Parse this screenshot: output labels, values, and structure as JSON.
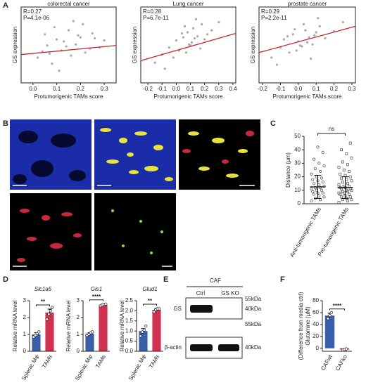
{
  "panel_labels": [
    "A",
    "B",
    "C",
    "D",
    "E",
    "F"
  ],
  "chart_data": [
    {
      "type": "scatter",
      "title": "colorectal cancer",
      "annotations": [
        "R=0.27",
        "P=4.1e-06"
      ],
      "xlabel": "Protumorigenic TAMs score",
      "ylabel": "GS expression",
      "color": "#a9a9a9",
      "fit_color": "#c0282d",
      "xlim": [
        -0.05,
        0.35
      ],
      "ylim": [
        -4,
        3.5
      ],
      "xticks": [
        {
          "value": 0,
          "label": "0.0"
        },
        0.1,
        0.2,
        0.3
      ],
      "x": [
        0.02,
        0.05,
        0.08,
        0.1,
        0.12,
        0.15,
        0.18,
        0.2,
        0.22,
        0.25,
        0.28,
        0.3,
        0.06,
        0.09,
        0.11,
        0.13,
        0.16,
        0.19,
        0.21,
        0.24,
        0.07,
        0.14,
        0.17,
        0.04,
        0.26
      ],
      "y": [
        -1.5,
        0.8,
        -2.1,
        0.3,
        -0.8,
        1.2,
        -0.2,
        0.5,
        -1.0,
        0.9,
        -0.5,
        0.2,
        -0.3,
        1.5,
        -2.8,
        0.1,
        -1.3,
        0.7,
        1.8,
        -0.6,
        -1.1,
        -0.4,
        2.1,
        -0.9,
        0.4
      ],
      "fit": {
        "x": [
          -0.05,
          0.35
        ],
        "y": [
          -1.2,
          -0.3
        ]
      }
    },
    {
      "type": "scatter",
      "title": "Lung cancer",
      "annotations": [
        "R=0.28",
        "P=6.7e-11"
      ],
      "xlabel": "Protumorigenic TAMs score",
      "ylabel": "GS expression",
      "color": "#a9a9a9",
      "fit_color": "#c0282d",
      "xlim": [
        -0.25,
        0.42
      ],
      "ylim": [
        -4,
        3.5
      ],
      "xticks": [
        -0.2,
        -0.1,
        {
          "value": 0,
          "label": "0.0"
        },
        0.1,
        0.2,
        0.3,
        0.4
      ],
      "x": [
        -0.15,
        -0.1,
        -0.05,
        0,
        0.02,
        0.05,
        0.08,
        0.1,
        0.12,
        0.15,
        0.18,
        0.2,
        0.25,
        0.3,
        -0.08,
        -0.02,
        0.04,
        0.07,
        0.11,
        0.14,
        0.17,
        0.22,
        0.06,
        0.09,
        0.13
      ],
      "y": [
        -2.0,
        -1.2,
        -0.5,
        0.2,
        -0.8,
        0.5,
        1.0,
        -0.3,
        1.4,
        0.6,
        1.8,
        0.3,
        1.2,
        2.0,
        -2.6,
        -1.5,
        0.9,
        -1.0,
        0.0,
        2.3,
        -0.6,
        0.8,
        1.6,
        -0.2,
        0.4
      ],
      "fit": {
        "x": [
          -0.25,
          0.42
        ],
        "y": [
          -1.8,
          0.9
        ]
      }
    },
    {
      "type": "scatter",
      "title": "prostate cancer",
      "annotations": [
        "R=0.29",
        "P=2.2e-11"
      ],
      "xlabel": "Protumorigenic TAMs score",
      "ylabel": "GS expression",
      "color": "#a9a9a9",
      "fit_color": "#c0282d",
      "xlim": [
        -0.22,
        0.32
      ],
      "ylim": [
        -4,
        3.5
      ],
      "xticks": [
        -0.2,
        -0.1,
        {
          "value": 0,
          "label": "0.0"
        },
        0.1,
        0.2,
        0.3
      ],
      "x": [
        -0.15,
        -0.1,
        -0.08,
        -0.05,
        -0.03,
        0,
        0.02,
        0.04,
        0.06,
        0.08,
        0.1,
        0.12,
        0.15,
        0.2,
        0.25,
        -0.12,
        -0.06,
        -0.01,
        0.03,
        0.05,
        0.07,
        0.09,
        0.11,
        0.01,
        -0.02
      ],
      "y": [
        -1.5,
        -0.5,
        0.3,
        -1.0,
        0.8,
        0.1,
        -0.4,
        1.2,
        0.5,
        -0.2,
        1.0,
        1.6,
        0.4,
        1.1,
        2.0,
        -2.2,
        0.6,
        -0.8,
        1.8,
        0.0,
        -1.6,
        0.7,
        2.4,
        -0.3,
        1.3
      ],
      "fit": {
        "x": [
          -0.22,
          0.32
        ],
        "y": [
          -1.0,
          1.6
        ]
      }
    },
    {
      "type": "strip",
      "ylabel": "Distance (μm)",
      "categories": [
        "Anti-tumorigenic TAMs",
        "Pro-tumorigenic TAMs"
      ],
      "annotation": "ns",
      "ylim": [
        0,
        50
      ],
      "yticks": [
        0,
        10,
        20,
        30,
        40,
        50
      ],
      "markers": [
        "circle",
        "square"
      ],
      "color": "#333333",
      "means": [
        12.5,
        12
      ],
      "errors": [
        8.5,
        8
      ],
      "points": [
        [
          2,
          3,
          4,
          5,
          6,
          7,
          8,
          8,
          9,
          10,
          10,
          11,
          12,
          12,
          13,
          14,
          15,
          16,
          17,
          18,
          19,
          20,
          22,
          24,
          26,
          28,
          30,
          33,
          38,
          42
        ],
        [
          1,
          2,
          3,
          3,
          4,
          5,
          5,
          6,
          7,
          7,
          8,
          8,
          9,
          9,
          10,
          10,
          11,
          11,
          12,
          12,
          13,
          13,
          14,
          15,
          16,
          17,
          18,
          19,
          20,
          21,
          22,
          24,
          25,
          27,
          29,
          31,
          34,
          37,
          40,
          45
        ]
      ]
    },
    {
      "type": "bar",
      "title": "Slc1a5",
      "ylabel": "Relative mRNA level",
      "categories": [
        "Splenic Mφ",
        "TAMs"
      ],
      "colors": [
        "#3a5ea8",
        "#d0314f"
      ],
      "values": [
        1.0,
        2.3
      ],
      "errors": [
        0.1,
        0.2
      ],
      "annotation": "**",
      "points": [
        [
          0.85,
          0.95,
          1.05,
          1.15
        ],
        [
          1.9,
          2.2,
          2.4,
          2.6
        ]
      ],
      "ylim": [
        0,
        3
      ],
      "yticks": [
        0,
        1,
        2,
        3
      ]
    },
    {
      "type": "bar",
      "title": "Gls1",
      "ylabel": "Relative mRNA level",
      "categories": [
        "Splenic Mφ",
        "TAMs"
      ],
      "colors": [
        "#3a5ea8",
        "#d0314f"
      ],
      "values": [
        1.05,
        2.75
      ],
      "errors": [
        0.05,
        0.05
      ],
      "annotation": "****",
      "points": [
        [
          0.95,
          1.0,
          1.1,
          1.15
        ],
        [
          2.7,
          2.75,
          2.78,
          2.8
        ]
      ],
      "ylim": [
        0,
        3
      ],
      "yticks": [
        0,
        1,
        2,
        3
      ]
    },
    {
      "type": "bar",
      "title": "Glud1",
      "ylabel": "Relative mRNA level",
      "categories": [
        "Splenic Mφ",
        "TAMs"
      ],
      "colors": [
        "#3a5ea8",
        "#d0314f"
      ],
      "values": [
        1.0,
        2.05
      ],
      "errors": [
        0.12,
        0.07
      ],
      "annotation": "**",
      "points": [
        [
          0.75,
          0.95,
          1.05,
          1.25
        ],
        [
          1.95,
          2.05,
          2.1,
          2.1
        ]
      ],
      "ylim": [
        0,
        2.5
      ],
      "yticks": [
        {
          "value": 0,
          "label": "0.0"
        },
        0.5,
        {
          "value": 1,
          "label": "1.0"
        },
        1.5,
        {
          "value": 2,
          "label": "2.0"
        },
        2.5
      ]
    },
    {
      "type": "bar",
      "ylabel": "Glutamine (μM)",
      "ylabel2": "(Difference from media ctrl)",
      "categories": [
        "CAFwt",
        "CAFko"
      ],
      "colors": [
        "#3a5ea8",
        "#d0314f"
      ],
      "values": [
        55,
        -2
      ],
      "errors": [
        4,
        1
      ],
      "annotation": "****",
      "points": [
        [
          50,
          55,
          60
        ],
        [
          -3,
          -2,
          -1
        ]
      ],
      "ylim": [
        -5,
        80
      ],
      "yticks": [
        0,
        20,
        40,
        60,
        80
      ]
    }
  ],
  "western_blot": {
    "group": "CAF",
    "lanes": [
      "Ctrl",
      "GS KO"
    ],
    "proteins": [
      "GS",
      "β-actin"
    ],
    "markers": [
      "55kDa",
      "40kDa",
      "55kDa",
      "40kDa"
    ]
  }
}
